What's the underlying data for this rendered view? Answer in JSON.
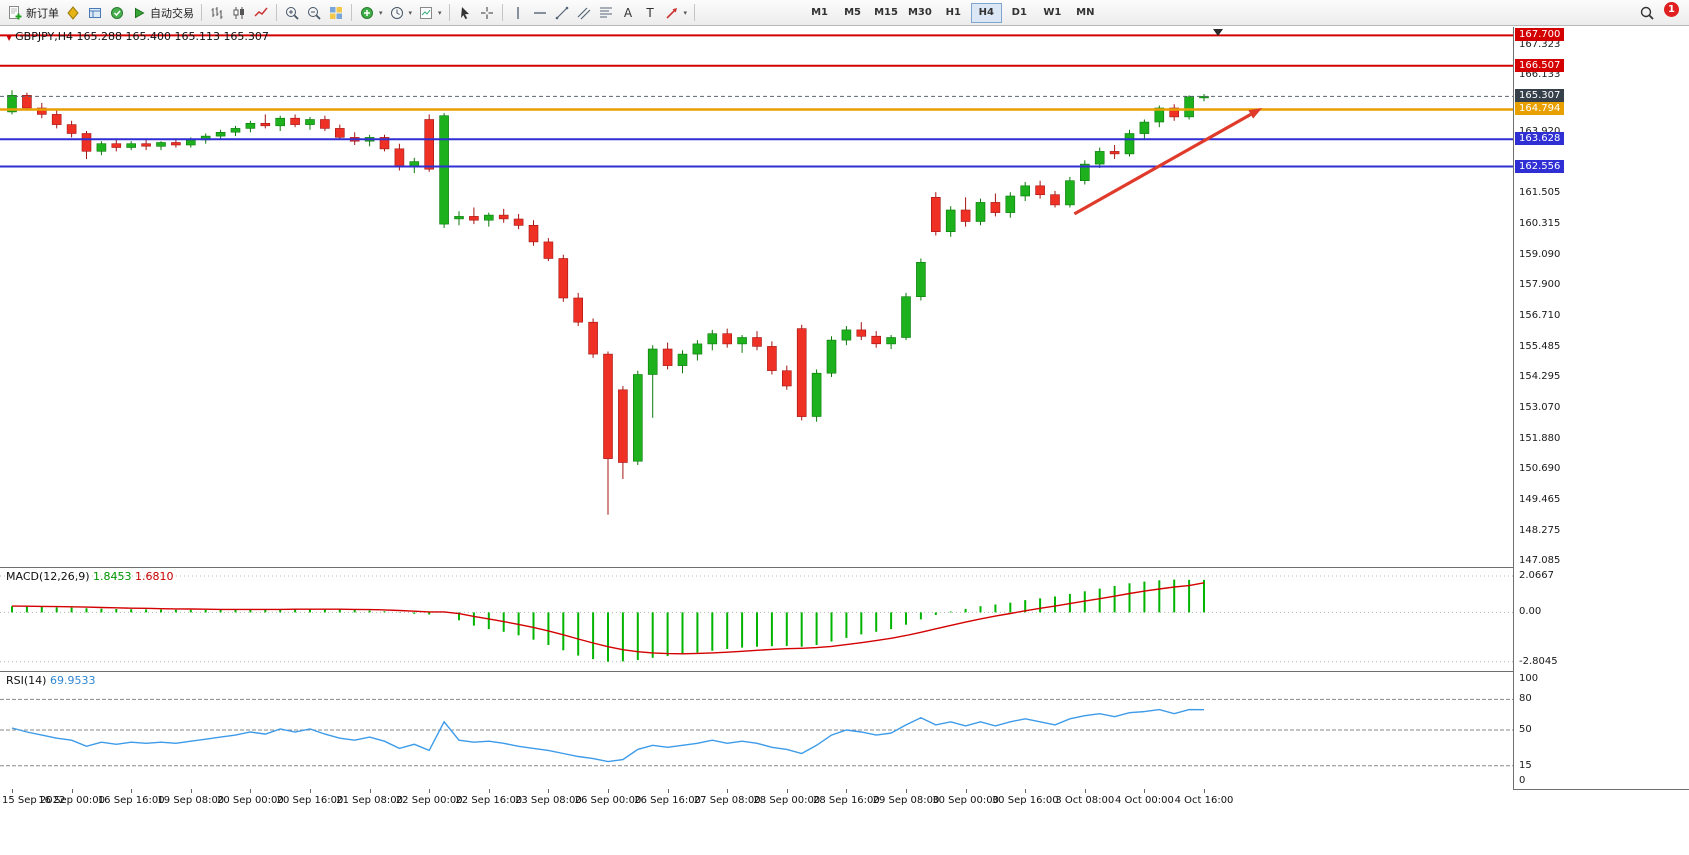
{
  "toolbar": {
    "new_order": "新订单",
    "auto_trading": "自动交易",
    "timeframes": [
      "M1",
      "M5",
      "M15",
      "M30",
      "H1",
      "H4",
      "D1",
      "W1",
      "MN"
    ],
    "active_timeframe": "H4",
    "notification_count": "1"
  },
  "chart_data": [
    {
      "type": "candlestick",
      "symbol_period": "GBPJPY,H4",
      "ohlc_text": "165.288 165.400 165.113 165.307",
      "up_color": "#1db11d",
      "down_color": "#ee3124",
      "ylim": [
        146.85,
        167.95
      ],
      "y_ticks": [
        167.323,
        166.133,
        163.92,
        161.505,
        160.315,
        159.09,
        157.9,
        156.71,
        155.485,
        154.295,
        153.07,
        151.88,
        150.69,
        149.465,
        148.275,
        147.085
      ],
      "levels": [
        {
          "price": 167.7,
          "label": "167.700",
          "color": "#d40000",
          "width": 2
        },
        {
          "price": 166.507,
          "label": "166.507",
          "color": "#d40000",
          "width": 2
        },
        {
          "price": 164.794,
          "label": "164.794",
          "color": "#e8a000",
          "width": 2.5
        },
        {
          "price": 163.628,
          "label": "163.628",
          "color": "#2f2fd4",
          "width": 2
        },
        {
          "price": 162.556,
          "label": "162.556",
          "color": "#2f2fd4",
          "width": 2
        }
      ],
      "current_price": {
        "value": 165.307,
        "label": "165.307",
        "badge_color": "#36404a",
        "line_color": "#5a6470"
      },
      "trend_arrow": {
        "from": {
          "candle": 72.3,
          "price": 160.7
        },
        "to": {
          "candle": 84.9,
          "price": 164.85
        },
        "color": "#e03a2a"
      },
      "x_labels": [
        "15 Sep 2022",
        "16 Sep 00:00",
        "16 Sep 16:00",
        "19 Sep 08:00",
        "20 Sep 00:00",
        "20 Sep 16:00",
        "21 Sep 08:00",
        "22 Sep 00:00",
        "22 Sep 16:00",
        "23 Sep 08:00",
        "26 Sep 00:00",
        "26 Sep 16:00",
        "27 Sep 08:00",
        "28 Sep 00:00",
        "28 Sep 16:00",
        "29 Sep 08:00",
        "30 Sep 00:00",
        "30 Sep 16:00",
        "3 Oct 08:00",
        "4 Oct 00:00",
        "4 Oct 16:00"
      ],
      "candles_per_label": 4,
      "ohlc": [
        [
          164.7,
          165.55,
          164.6,
          165.35
        ],
        [
          165.35,
          165.45,
          164.75,
          164.85
        ],
        [
          164.85,
          165.05,
          164.45,
          164.6
        ],
        [
          164.6,
          164.8,
          164.05,
          164.2
        ],
        [
          164.2,
          164.35,
          163.7,
          163.85
        ],
        [
          163.85,
          163.95,
          162.85,
          163.15
        ],
        [
          163.15,
          163.55,
          163.0,
          163.45
        ],
        [
          163.45,
          163.6,
          163.15,
          163.3
        ],
        [
          163.3,
          163.55,
          163.2,
          163.45
        ],
        [
          163.45,
          163.6,
          163.2,
          163.35
        ],
        [
          163.35,
          163.55,
          163.2,
          163.5
        ],
        [
          163.5,
          163.65,
          163.3,
          163.4
        ],
        [
          163.4,
          163.7,
          163.3,
          163.6
        ],
        [
          163.6,
          163.85,
          163.45,
          163.75
        ],
        [
          163.75,
          164.0,
          163.6,
          163.9
        ],
        [
          163.9,
          164.15,
          163.75,
          164.05
        ],
        [
          164.05,
          164.35,
          163.9,
          164.25
        ],
        [
          164.25,
          164.6,
          164.05,
          164.15
        ],
        [
          164.15,
          164.55,
          163.95,
          164.45
        ],
        [
          164.45,
          164.6,
          164.1,
          164.2
        ],
        [
          164.2,
          164.5,
          164.0,
          164.4
        ],
        [
          164.4,
          164.55,
          163.95,
          164.05
        ],
        [
          164.05,
          164.2,
          163.6,
          163.7
        ],
        [
          163.7,
          163.9,
          163.4,
          163.55
        ],
        [
          163.55,
          163.8,
          163.35,
          163.7
        ],
        [
          163.7,
          163.8,
          163.15,
          163.25
        ],
        [
          163.25,
          163.45,
          162.4,
          162.55
        ],
        [
          162.55,
          162.9,
          162.3,
          162.75
        ],
        [
          164.4,
          164.6,
          162.35,
          162.45
        ],
        [
          160.3,
          164.65,
          160.15,
          164.55
        ],
        [
          160.5,
          160.8,
          160.25,
          160.6
        ],
        [
          160.6,
          160.95,
          160.3,
          160.45
        ],
        [
          160.45,
          160.75,
          160.2,
          160.65
        ],
        [
          160.65,
          160.9,
          160.35,
          160.5
        ],
        [
          160.5,
          160.7,
          160.1,
          160.25
        ],
        [
          160.25,
          160.45,
          159.45,
          159.6
        ],
        [
          159.6,
          159.75,
          158.85,
          158.95
        ],
        [
          158.95,
          159.1,
          157.25,
          157.4
        ],
        [
          157.4,
          157.6,
          156.3,
          156.45
        ],
        [
          156.45,
          156.6,
          155.05,
          155.2
        ],
        [
          155.2,
          155.3,
          148.9,
          151.1
        ],
        [
          153.8,
          153.95,
          150.3,
          150.95
        ],
        [
          151.0,
          154.55,
          150.85,
          154.4
        ],
        [
          154.4,
          155.55,
          152.7,
          155.4
        ],
        [
          155.4,
          155.65,
          154.6,
          154.75
        ],
        [
          154.75,
          155.35,
          154.45,
          155.2
        ],
        [
          155.2,
          155.75,
          154.95,
          155.6
        ],
        [
          155.6,
          156.15,
          155.35,
          156.0
        ],
        [
          156.0,
          156.2,
          155.45,
          155.6
        ],
        [
          155.6,
          155.95,
          155.25,
          155.85
        ],
        [
          155.85,
          156.1,
          155.35,
          155.5
        ],
        [
          155.5,
          155.7,
          154.4,
          154.55
        ],
        [
          154.55,
          154.75,
          153.8,
          153.95
        ],
        [
          156.2,
          156.35,
          152.6,
          152.75
        ],
        [
          152.75,
          154.6,
          152.55,
          154.45
        ],
        [
          154.45,
          155.9,
          154.3,
          155.75
        ],
        [
          155.75,
          156.3,
          155.55,
          156.15
        ],
        [
          156.15,
          156.45,
          155.75,
          155.9
        ],
        [
          155.9,
          156.1,
          155.45,
          155.6
        ],
        [
          155.6,
          155.95,
          155.4,
          155.85
        ],
        [
          155.85,
          157.6,
          155.75,
          157.45
        ],
        [
          157.45,
          158.95,
          157.3,
          158.8
        ],
        [
          161.35,
          161.55,
          159.85,
          160.0
        ],
        [
          160.0,
          161.0,
          159.8,
          160.85
        ],
        [
          160.85,
          161.35,
          160.2,
          160.4
        ],
        [
          160.4,
          161.3,
          160.25,
          161.15
        ],
        [
          161.15,
          161.5,
          160.6,
          160.75
        ],
        [
          160.75,
          161.55,
          160.55,
          161.4
        ],
        [
          161.4,
          161.95,
          161.2,
          161.8
        ],
        [
          161.8,
          162.0,
          161.3,
          161.45
        ],
        [
          161.45,
          161.6,
          160.95,
          161.05
        ],
        [
          161.05,
          162.15,
          160.95,
          162.0
        ],
        [
          162.0,
          162.8,
          161.85,
          162.65
        ],
        [
          162.65,
          163.3,
          162.5,
          163.15
        ],
        [
          163.15,
          163.4,
          162.85,
          163.05
        ],
        [
          163.05,
          164.0,
          162.95,
          163.85
        ],
        [
          163.85,
          164.4,
          163.65,
          164.3
        ],
        [
          164.3,
          164.95,
          164.1,
          164.85
        ],
        [
          164.85,
          165.0,
          164.35,
          164.5
        ],
        [
          164.5,
          165.35,
          164.4,
          165.29
        ],
        [
          165.288,
          165.4,
          165.113,
          165.307
        ]
      ]
    },
    {
      "type": "macd_histogram",
      "label": "MACD(12,26,9)",
      "main_value": "1.8453",
      "signal_value": "1.6810",
      "histogram_color": "#00b400",
      "signal_color": "#d40000",
      "ylim": [
        -3.1,
        2.35
      ],
      "y_ticks": [
        {
          "v": 2.0667,
          "label": "2.0667"
        },
        {
          "v": 0,
          "label": "0.00"
        },
        {
          "v": -2.8045,
          "label": "-2.8045"
        }
      ],
      "histogram": [
        0.35,
        0.33,
        0.31,
        0.29,
        0.27,
        0.23,
        0.21,
        0.19,
        0.18,
        0.17,
        0.16,
        0.15,
        0.14,
        0.14,
        0.15,
        0.16,
        0.17,
        0.18,
        0.19,
        0.2,
        0.2,
        0.19,
        0.17,
        0.14,
        0.11,
        0.06,
        -0.02,
        -0.08,
        -0.12,
        0.02,
        -0.45,
        -0.75,
        -0.95,
        -1.1,
        -1.3,
        -1.55,
        -1.85,
        -2.15,
        -2.45,
        -2.65,
        -2.8,
        -2.78,
        -2.7,
        -2.58,
        -2.48,
        -2.38,
        -2.28,
        -2.18,
        -2.08,
        -2.0,
        -1.95,
        -1.92,
        -1.9,
        -1.95,
        -1.85,
        -1.65,
        -1.45,
        -1.25,
        -1.1,
        -0.95,
        -0.7,
        -0.4,
        -0.15,
        0.05,
        0.2,
        0.35,
        0.45,
        0.55,
        0.7,
        0.8,
        0.9,
        1.05,
        1.2,
        1.35,
        1.5,
        1.65,
        1.75,
        1.82,
        1.86,
        1.85,
        1.8453
      ],
      "signal": [
        0.36,
        0.35,
        0.34,
        0.33,
        0.32,
        0.3,
        0.28,
        0.26,
        0.24,
        0.23,
        0.21,
        0.2,
        0.19,
        0.18,
        0.17,
        0.17,
        0.17,
        0.17,
        0.17,
        0.18,
        0.18,
        0.18,
        0.18,
        0.17,
        0.16,
        0.14,
        0.11,
        0.07,
        0.03,
        0.03,
        -0.07,
        -0.23,
        -0.37,
        -0.52,
        -0.68,
        -0.85,
        -1.05,
        -1.27,
        -1.51,
        -1.74,
        -1.95,
        -2.12,
        -2.23,
        -2.3,
        -2.34,
        -2.35,
        -2.33,
        -2.3,
        -2.26,
        -2.21,
        -2.15,
        -2.1,
        -2.06,
        -2.04,
        -2.0,
        -1.93,
        -1.83,
        -1.72,
        -1.6,
        -1.47,
        -1.31,
        -1.13,
        -0.93,
        -0.74,
        -0.55,
        -0.37,
        -0.21,
        -0.06,
        0.09,
        0.23,
        0.36,
        0.5,
        0.64,
        0.78,
        0.92,
        1.07,
        1.21,
        1.33,
        1.44,
        1.52,
        1.681
      ]
    },
    {
      "type": "line",
      "label": "RSI(14)",
      "value": "69.9533",
      "line_color": "#3d9be9",
      "ylim": [
        0,
        100
      ],
      "y_ticks": [
        100,
        80,
        50,
        15,
        0
      ],
      "levels": [
        80,
        50,
        15
      ],
      "values": [
        52,
        48,
        45,
        42,
        40,
        34,
        38,
        36,
        38,
        37,
        38,
        37,
        39,
        41,
        43,
        45,
        48,
        46,
        51,
        48,
        51,
        46,
        42,
        40,
        43,
        39,
        32,
        36,
        30,
        58,
        40,
        38,
        39,
        37,
        34,
        32,
        30,
        27,
        24,
        22,
        19,
        21,
        31,
        35,
        33,
        35,
        37,
        40,
        37,
        39,
        37,
        33,
        31,
        27,
        35,
        45,
        50,
        48,
        45,
        47,
        55,
        62,
        55,
        58,
        54,
        58,
        54,
        58,
        61,
        58,
        55,
        61,
        64,
        66,
        63,
        67,
        68,
        70,
        66,
        70,
        69.95
      ]
    }
  ]
}
